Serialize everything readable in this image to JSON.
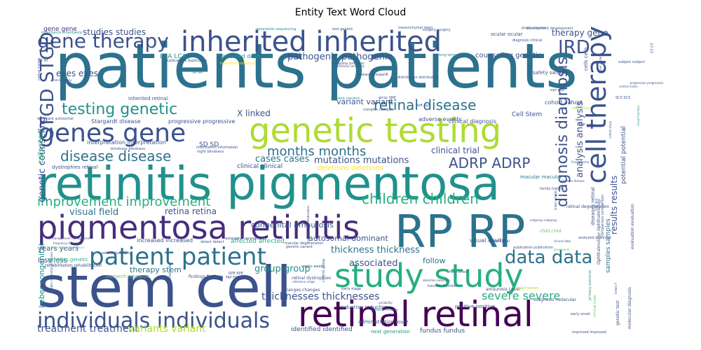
{
  "chart_data": {
    "type": "wordcloud",
    "title": "Entity Text Word Cloud",
    "palette": [
      "#440154",
      "#472d7b",
      "#3b528b",
      "#2c728e",
      "#21918c",
      "#28ae80",
      "#5ec962",
      "#addc30",
      "#fde725"
    ],
    "words": [
      {
        "text": "patients patients",
        "weight": 100,
        "color": "#2c728e"
      },
      {
        "text": "stem cell",
        "weight": 92,
        "color": "#3b528b"
      },
      {
        "text": "retinitis pigmentosa",
        "weight": 78,
        "color": "#21918c"
      },
      {
        "text": "RP RP",
        "weight": 70,
        "color": "#2c728e"
      },
      {
        "text": "pigmentosa retinitis",
        "weight": 60,
        "color": "#472d7b"
      },
      {
        "text": "genetic testing",
        "weight": 58,
        "color": "#addc30"
      },
      {
        "text": "retinal retinal",
        "weight": 56,
        "color": "#440154"
      },
      {
        "text": "study study",
        "weight": 56,
        "color": "#28ae80"
      },
      {
        "text": "inherited inherited",
        "weight": 50,
        "color": "#3b528b"
      },
      {
        "text": "genes gene",
        "weight": 44,
        "color": "#3b528b"
      },
      {
        "text": "patient patient",
        "weight": 42,
        "color": "#2c728e"
      },
      {
        "text": "cell therapy",
        "weight": 38,
        "color": "#3b528b"
      },
      {
        "text": "individuals individuals",
        "weight": 38,
        "color": "#3b528b"
      },
      {
        "text": "gene therapy",
        "weight": 34,
        "color": "#3b528b"
      },
      {
        "text": "STGD STGD",
        "weight": 33,
        "color": "#3b528b"
      },
      {
        "text": "data data",
        "weight": 30,
        "color": "#2c728e"
      },
      {
        "text": "testing genetic",
        "weight": 30,
        "color": "#21918c"
      },
      {
        "text": "diagnosis diagnosis",
        "weight": 28,
        "color": "#3b528b"
      },
      {
        "text": "IRD",
        "weight": 26,
        "color": "#3b528b"
      },
      {
        "text": "ADRP ADRP",
        "weight": 24,
        "color": "#3b528b"
      },
      {
        "text": "retinal disease",
        "weight": 24,
        "color": "#2c728e"
      },
      {
        "text": "disease disease",
        "weight": 23,
        "color": "#2c728e"
      },
      {
        "text": "improvement improvement",
        "weight": 22,
        "color": "#28ae80"
      },
      {
        "text": "children children",
        "weight": 22,
        "color": "#28ae80"
      },
      {
        "text": "months months",
        "weight": 20,
        "color": "#2c728e"
      },
      {
        "text": "severe severe",
        "weight": 17,
        "color": "#28ae80"
      },
      {
        "text": "thicknesses thicknesses",
        "weight": 16,
        "color": "#3b528b"
      },
      {
        "text": "treatment treatment",
        "weight": 15,
        "color": "#3b528b"
      },
      {
        "text": "variants variant",
        "weight": 15,
        "color": "#addc30"
      },
      {
        "text": "pathogenic pathogenic",
        "weight": 15,
        "color": "#3b528b"
      },
      {
        "text": "genetic counseling",
        "weight": 14,
        "color": "#3b528b"
      },
      {
        "text": "analysis analysis",
        "weight": 14,
        "color": "#3b528b"
      },
      {
        "text": "results results",
        "weight": 14,
        "color": "#3b528b"
      },
      {
        "text": "visual field",
        "weight": 13,
        "color": "#2c728e"
      },
      {
        "text": "thickness thickness",
        "weight": 13,
        "color": "#2c728e"
      },
      {
        "text": "group group",
        "weight": 13,
        "color": "#21918c"
      },
      {
        "text": "associated",
        "weight": 13,
        "color": "#3b528b"
      },
      {
        "text": "mutations mutations",
        "weight": 13,
        "color": "#3b528b"
      },
      {
        "text": "clinical trial",
        "weight": 13,
        "color": "#3b528b"
      },
      {
        "text": "cases cases",
        "weight": 12,
        "color": "#2c728e"
      },
      {
        "text": "retina retina",
        "weight": 12,
        "color": "#3b528b"
      },
      {
        "text": "X linked",
        "weight": 12,
        "color": "#3b528b"
      },
      {
        "text": "therapy gene",
        "weight": 12,
        "color": "#3b528b"
      },
      {
        "text": "eyes eyes",
        "weight": 12,
        "color": "#3b528b"
      },
      {
        "text": "studies studies",
        "weight": 12,
        "color": "#3b528b"
      },
      {
        "text": "counseling genetic",
        "weight": 11,
        "color": "#3b528b"
      },
      {
        "text": "congenital amaurosis",
        "weight": 11,
        "color": "#3b528b"
      },
      {
        "text": "autosomal dominant",
        "weight": 11,
        "color": "#3b528b"
      },
      {
        "text": "follow",
        "weight": 11,
        "color": "#2c728e"
      },
      {
        "text": "Leber congenital",
        "weight": 11,
        "color": "#21918c"
      },
      {
        "text": "variant variant",
        "weight": 11,
        "color": "#3b528b"
      },
      {
        "text": "therapy stem",
        "weight": 11,
        "color": "#2c728e"
      },
      {
        "text": "years years",
        "weight": 10,
        "color": "#3b528b"
      },
      {
        "text": "loss loss",
        "weight": 10,
        "color": "#3b528b"
      },
      {
        "text": "deletions deletions",
        "weight": 10,
        "color": "#fde725"
      },
      {
        "text": "cells stem",
        "weight": 10,
        "color": "#28ae80"
      },
      {
        "text": "identified identified",
        "weight": 9,
        "color": "#3b528b"
      },
      {
        "text": "affected affected",
        "weight": 9,
        "color": "#28ae80"
      },
      {
        "text": "Cell Stem",
        "weight": 9,
        "color": "#3b528b"
      },
      {
        "text": "potential potential",
        "weight": 9,
        "color": "#3b528b"
      },
      {
        "text": "fundus fundus",
        "weight": 9,
        "color": "#3b528b"
      },
      {
        "text": "SD SD",
        "weight": 9,
        "color": "#3b528b"
      },
      {
        "text": "LCA LCA",
        "weight": 9,
        "color": "#21918c"
      },
      {
        "text": "clinical clinical",
        "weight": 9,
        "color": "#3b528b"
      },
      {
        "text": "gene gene",
        "weight": 9,
        "color": "#472d7b"
      },
      {
        "text": "samples samples",
        "weight": 8,
        "color": "#2c728e"
      },
      {
        "text": "visual acuity",
        "weight": 8,
        "color": "#3b528b"
      },
      {
        "text": "increased increased",
        "weight": 8,
        "color": "#3b528b"
      },
      {
        "text": "detected detected",
        "weight": 8,
        "color": "#21918c"
      },
      {
        "text": "cohort cohort",
        "weight": 8,
        "color": "#3b528b"
      },
      {
        "text": "progressive progressive",
        "weight": 8,
        "color": "#3b528b"
      },
      {
        "text": "interpretation interpretation",
        "weight": 8,
        "color": "#3b528b"
      },
      {
        "text": "Stargardt disease",
        "weight": 8,
        "color": "#3b528b"
      },
      {
        "text": "adverse events",
        "weight": 8,
        "color": "#3b528b"
      },
      {
        "text": "clinical diagnosis",
        "weight": 8,
        "color": "#3b528b"
      },
      {
        "text": "dystrophies retinal",
        "weight": 7,
        "color": "#3b528b"
      },
      {
        "text": "Inherited retinal",
        "weight": 7,
        "color": "#3b528b"
      },
      {
        "text": "next generation",
        "weight": 7,
        "color": "#21918c"
      },
      {
        "text": "administration route",
        "weight": 7,
        "color": "#3b528b"
      },
      {
        "text": "positive positive",
        "weight": 7,
        "color": "#3b528b"
      },
      {
        "text": "reduction reduction",
        "weight": 7,
        "color": "#3b528b"
      },
      {
        "text": "research research",
        "weight": 7,
        "color": "#5ec962"
      },
      {
        "text": "diseases retinal",
        "weight": 7,
        "color": "#3b528b"
      },
      {
        "text": "genetics genetic",
        "weight": 7,
        "color": "#28ae80"
      },
      {
        "text": "macular macular",
        "weight": 7,
        "color": "#2c728e"
      },
      {
        "text": "safety safety",
        "weight": 7,
        "color": "#3b528b"
      },
      {
        "text": "ocular ocular",
        "weight": 7,
        "color": "#3b528b"
      },
      {
        "text": "cells cells",
        "weight": 7,
        "color": "#3b528b"
      },
      {
        "text": "molecular diagnosis",
        "weight": 6,
        "color": "#3b528b"
      },
      {
        "text": "genetic test",
        "weight": 6,
        "color": "#3b528b"
      },
      {
        "text": "evaluation evaluation",
        "weight": 6,
        "color": "#3b528b"
      },
      {
        "text": "retinal degeneration",
        "weight": 6,
        "color": "#3b528b"
      },
      {
        "text": "child child",
        "weight": 6,
        "color": "#5ec962"
      },
      {
        "text": "diagnosis molecular",
        "weight": 6,
        "color": "#3b528b"
      },
      {
        "text": "Ophthalmology Ophthalmology",
        "weight": 6,
        "color": "#3b528b"
      },
      {
        "text": "retinal dystrophies",
        "weight": 6,
        "color": "#3b528b"
      },
      {
        "text": "findings findings",
        "weight": 6,
        "color": "#3b528b"
      },
      {
        "text": "rehabilitation rehabilitation",
        "weight": 6,
        "color": "#3b528b"
      },
      {
        "text": "amaurosis Leber",
        "weight": 6,
        "color": "#3b528b"
      },
      {
        "text": "changes changes",
        "weight": 6,
        "color": "#3b528b"
      },
      {
        "text": "early stage",
        "weight": 5,
        "color": "#3b528b"
      },
      {
        "text": "control group",
        "weight": 5,
        "color": "#3b528b"
      },
      {
        "text": "complex complex",
        "weight": 5,
        "color": "#3b528b"
      },
      {
        "text": "consent consent",
        "weight": 5,
        "color": "#21918c"
      },
      {
        "text": "distribution distribution",
        "weight": 5,
        "color": "#3b528b"
      },
      {
        "text": "duplications duplication",
        "weight": 5,
        "color": "#3b528b"
      },
      {
        "text": "individual individual",
        "weight": 5,
        "color": "#fde725"
      },
      {
        "text": "progress progress",
        "weight": 5,
        "color": "#3b528b"
      },
      {
        "text": "generation sequencing",
        "weight": 5,
        "color": "#21918c"
      },
      {
        "text": "surgery surgery",
        "weight": 5,
        "color": "#3b528b"
      },
      {
        "text": "inheritance inheritance",
        "weight": 5,
        "color": "#21918c"
      },
      {
        "text": "dominant autosomal",
        "weight": 5,
        "color": "#3b528b"
      },
      {
        "text": "blindness blindness",
        "weight": 5,
        "color": "#3b528b"
      },
      {
        "text": "night blindness",
        "weight": 5,
        "color": "#3b528b"
      },
      {
        "text": "information information",
        "weight": 5,
        "color": "#3b528b"
      },
      {
        "text": "family history",
        "weight": 5,
        "color": "#3b528b"
      },
      {
        "text": "subject subject",
        "weight": 5,
        "color": "#3b528b"
      },
      {
        "text": "early onset",
        "weight": 5,
        "color": "#3b528b"
      },
      {
        "text": "improved improved",
        "weight": 5,
        "color": "#3b528b"
      },
      {
        "text": "function function",
        "weight": 5,
        "color": "#3b528b"
      },
      {
        "text": "criteria criteria",
        "weight": 5,
        "color": "#21918c"
      },
      {
        "text": "long term",
        "weight": 5,
        "color": "#21918c"
      },
      {
        "text": "CT CT",
        "weight": 5,
        "color": "#3b528b"
      },
      {
        "text": "SCS SCS",
        "weight": 5,
        "color": "#3b528b"
      },
      {
        "text": "SNP array",
        "weight": 5,
        "color": "#3b528b"
      },
      {
        "text": "RPE RPE",
        "weight": 5,
        "color": "#3b528b"
      },
      {
        "text": "FAF FAF",
        "weight": 5,
        "color": "#3b528b"
      },
      {
        "text": "VA VA",
        "weight": 5,
        "color": "#21918c"
      },
      {
        "text": "RT RT",
        "weight": 5,
        "color": "#3b528b"
      },
      {
        "text": "eye eye",
        "weight": 5,
        "color": "#3b528b"
      },
      {
        "text": "left eye",
        "weight": 5,
        "color": "#3b528b"
      },
      {
        "text": "effect effect",
        "weight": 5,
        "color": "#3b528b"
      },
      {
        "text": "weeks weeks",
        "weight": 5,
        "color": "#3b528b"
      },
      {
        "text": "human human",
        "weight": 5,
        "color": "#addc30"
      },
      {
        "text": "diagnosis clinical",
        "weight": 5,
        "color": "#3b528b"
      },
      {
        "text": "development development",
        "weight": 5,
        "color": "#3b528b"
      },
      {
        "text": "mesenchymal stem",
        "weight": 5,
        "color": "#3b528b"
      },
      {
        "text": "test genetic",
        "weight": 5,
        "color": "#3b528b"
      },
      {
        "text": "Choroidal Choroidal",
        "weight": 5,
        "color": "#3b528b"
      },
      {
        "text": "retinal dystrophy",
        "weight": 5,
        "color": "#3b528b"
      },
      {
        "text": "macular degeneration",
        "weight": 5,
        "color": "#3b528b"
      },
      {
        "text": "genetic variant",
        "weight": 5,
        "color": "#3b528b"
      },
      {
        "text": "detect detect",
        "weight": 5,
        "color": "#3b528b"
      },
      {
        "text": "autosomal recessive",
        "weight": 5,
        "color": "#3b528b"
      },
      {
        "text": "disease Stargardt",
        "weight": 5,
        "color": "#3b528b"
      },
      {
        "text": "array SNP",
        "weight": 5,
        "color": "#3b528b"
      },
      {
        "text": "publication publication",
        "weight": 5,
        "color": "#3b528b"
      },
      {
        "text": "analyzed analyzed",
        "weight": 5,
        "color": "#3b528b"
      },
      {
        "text": "field visual",
        "weight": 5,
        "color": "#3b528b"
      },
      {
        "text": "primary outcome",
        "weight": 5,
        "color": "#21918c"
      },
      {
        "text": "clinical trials",
        "weight": 5,
        "color": "#5ec962"
      },
      {
        "text": "comparison comparison",
        "weight": 5,
        "color": "#3b528b"
      },
      {
        "text": "frequency frequency",
        "weight": 5,
        "color": "#3b528b"
      },
      {
        "text": "method method",
        "weight": 5,
        "color": "#3b528b"
      },
      {
        "text": "Leber congenital amaurosis",
        "weight": 4,
        "color": "#3b528b"
      },
      {
        "text": "genetic counselor",
        "weight": 4,
        "color": "#3b528b"
      },
      {
        "text": "family family",
        "weight": 4,
        "color": "#3b528b"
      },
      {
        "text": "visual function",
        "weight": 4,
        "color": "#21918c"
      },
      {
        "text": "linked X",
        "weight": 4,
        "color": "#3b528b"
      },
      {
        "text": "lens lens",
        "weight": 4,
        "color": "#3b528b"
      },
      {
        "text": "collaboration collaboration",
        "weight": 4,
        "color": "#3b528b"
      },
      {
        "text": "management management",
        "weight": 4,
        "color": "#3b528b"
      },
      {
        "text": "sensitivity sensitivity",
        "weight": 4,
        "color": "#3b528b"
      },
      {
        "text": "prevalence prevalence",
        "weight": 4,
        "color": "#5ec962"
      },
      {
        "text": "linked retinitis",
        "weight": 4,
        "color": "#3b528b"
      },
      {
        "text": "progression progression",
        "weight": 4,
        "color": "#3b528b"
      },
      {
        "text": "diseases disease",
        "weight": 4,
        "color": "#3b528b"
      },
      {
        "text": "gene panel",
        "weight": 4,
        "color": "#5ec962"
      },
      {
        "text": "detection detection",
        "weight": 4,
        "color": "#3b528b"
      },
      {
        "text": "reference range",
        "weight": 4,
        "color": "#3b528b"
      },
      {
        "text": "clinical data",
        "weight": 4,
        "color": "#3b528b"
      },
      {
        "text": "trials clinical",
        "weight": 4,
        "color": "#addc30"
      },
      {
        "text": "vision vision",
        "weight": 4,
        "color": "#3b528b"
      },
      {
        "text": "control vision",
        "weight": 4,
        "color": "#3b528b"
      },
      {
        "text": "Fovea Fovea",
        "weight": 4,
        "color": "#3b528b"
      },
      {
        "text": "subgroup subgroup",
        "weight": 4,
        "color": "#3b528b"
      },
      {
        "text": "variability",
        "weight": 4,
        "color": "#3b528b"
      },
      {
        "text": "cohort study",
        "weight": 4,
        "color": "#3b528b"
      },
      {
        "text": "transplantation",
        "weight": 4,
        "color": "#addc30"
      },
      {
        "text": "severity severity",
        "weight": 4,
        "color": "#3b528b"
      }
    ]
  }
}
